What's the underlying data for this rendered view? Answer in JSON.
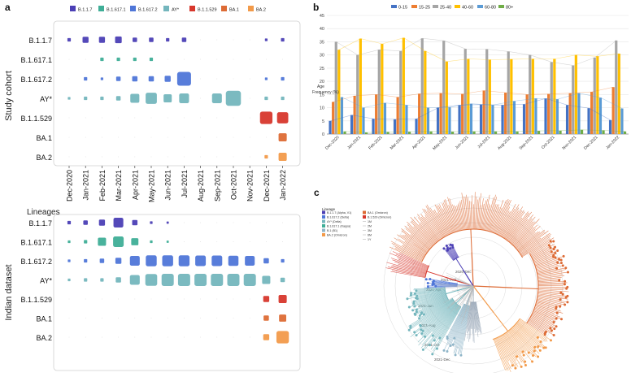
{
  "colors": {
    "B.1.1.7": "#4b3fb5",
    "B.1.617.1": "#3fae97",
    "B.1.617.2": "#4f76d8",
    "AY*": "#74b6bd",
    "B.1.1.529": "#d7372c",
    "BA.1": "#dd6b35",
    "BA.2": "#f29a4a"
  },
  "chart_data": [
    {
      "id": "a",
      "panel_label": "a",
      "type": "bubble-grid",
      "legend": [
        "B.1.1.7",
        "B.1.617.1",
        "B.1.617.2",
        "AY*",
        "B.1.1.529",
        "BA.1",
        "BA.2"
      ],
      "lineages": [
        "B.1.1.7",
        "B.1.617.1",
        "B.1.617.2",
        "AY*",
        "B.1.1.529",
        "BA.1",
        "BA.2"
      ],
      "months": [
        "Dec-2020",
        "Jan-2021",
        "Feb-2021",
        "Mar-2021",
        "Apr-2021",
        "May-2021",
        "Jun-2021",
        "Jul-2021",
        "Aug-2021",
        "Sep-2021",
        "Oct-2021",
        "Nov-2021",
        "Dec-2021",
        "Jan-2022"
      ],
      "xlabel": "Lineages",
      "study_cohort": {
        "ylabel": "Study cohort",
        "values": [
          [
            1,
            4,
            4,
            5,
            2,
            2,
            1,
            2,
            0,
            0,
            0,
            0,
            0.5,
            1
          ],
          [
            0,
            0,
            1,
            1,
            1,
            1,
            0,
            0,
            0,
            0,
            0,
            0,
            0,
            0
          ],
          [
            0,
            1,
            0.5,
            2,
            3,
            3,
            4,
            25,
            0,
            0,
            0,
            0,
            0.5,
            1
          ],
          [
            0.5,
            1,
            1,
            2,
            10,
            16,
            8,
            12,
            0,
            12,
            30,
            0,
            1,
            1
          ],
          [
            0,
            0,
            0,
            0,
            0,
            0,
            0,
            0,
            0,
            0,
            0,
            0,
            20,
            16
          ],
          [
            0,
            0,
            0,
            0,
            0,
            0,
            0,
            0,
            0,
            0,
            0,
            0,
            0,
            8
          ],
          [
            0,
            0,
            0,
            0,
            0,
            0,
            0,
            0,
            0,
            0,
            0,
            0,
            1,
            8
          ]
        ]
      },
      "indian_dataset": {
        "ylabel": "Indian dataset",
        "values": [
          [
            1,
            2,
            4,
            12,
            3,
            0.5,
            0.3,
            0,
            0,
            0,
            0,
            0,
            0,
            0
          ],
          [
            0.5,
            1,
            8,
            14,
            6,
            0.5,
            0.3,
            0,
            0,
            0,
            0,
            0,
            0,
            0
          ],
          [
            0.5,
            1,
            2,
            4,
            12,
            15,
            15,
            15,
            14,
            14,
            13,
            12,
            3,
            1
          ],
          [
            0.5,
            1,
            1,
            3,
            12,
            18,
            19,
            19,
            19,
            19,
            19,
            19,
            8,
            2
          ],
          [
            0,
            0,
            0,
            0,
            0,
            0,
            0,
            0,
            0,
            0,
            0,
            0,
            4,
            8
          ],
          [
            0,
            0,
            0,
            0,
            0,
            0,
            0,
            0,
            0,
            0,
            0,
            0,
            3,
            6
          ],
          [
            0,
            0,
            0,
            0,
            0,
            0,
            0,
            0,
            0,
            0,
            0,
            0,
            4,
            20
          ]
        ]
      }
    },
    {
      "id": "b",
      "panel_label": "b",
      "type": "bar",
      "title": "",
      "ylabel": "Age\nFrequency (%)",
      "ylim": [
        0,
        45
      ],
      "yticks": [
        0,
        5,
        10,
        15,
        20,
        25,
        30,
        35,
        40,
        45
      ],
      "categories": [
        "Dec-2020",
        "Jan-2021",
        "Feb-2021",
        "Mar-2021",
        "Apr-2021",
        "May-2021",
        "Jun-2021",
        "Jul-2021",
        "Aug-2021",
        "Sep-2021",
        "Oct-2021",
        "Nov-2021",
        "Dec-2021",
        "Jan-2022"
      ],
      "series": [
        {
          "name": "0-15",
          "color": "#4472c4",
          "values": [
            5,
            7.2,
            5.8,
            5.6,
            5.8,
            10,
            11,
            11.2,
            11,
            11.3,
            13.5,
            11,
            9.8,
            5.3
          ]
        },
        {
          "name": "15-25",
          "color": "#ed7d31",
          "values": [
            12.2,
            14.5,
            15,
            14,
            15.3,
            15.5,
            15.2,
            16.5,
            15.7,
            15,
            15.2,
            15.5,
            16,
            17.8
          ]
        },
        {
          "name": "25-40",
          "color": "#a5a5a5",
          "values": [
            35,
            30,
            32,
            31.5,
            36.3,
            35.4,
            32.3,
            32.2,
            31.3,
            30,
            27.3,
            26,
            29,
            35.5
          ]
        },
        {
          "name": "40-60",
          "color": "#ffc000",
          "values": [
            32,
            36.2,
            34.2,
            36.5,
            31.5,
            27.5,
            28.5,
            28.2,
            28.4,
            28.5,
            28.5,
            30,
            29.5,
            30.5
          ]
        },
        {
          "name": "60-80",
          "color": "#5b9bd5",
          "values": [
            14,
            10,
            11.8,
            11,
            10,
            10.2,
            11.5,
            11,
            12.5,
            13.5,
            13.2,
            15.5,
            13.8,
            9.7
          ]
        },
        {
          "name": "80+",
          "color": "#70ad47",
          "values": [
            1,
            0.6,
            0.8,
            0.9,
            1,
            0.9,
            1,
            1,
            1,
            1.2,
            1.3,
            1.6,
            1.4,
            1
          ]
        }
      ]
    },
    {
      "id": "c",
      "panel_label": "c",
      "type": "radial-phylogeny",
      "legend_title": "Lineage",
      "legend_items": [
        {
          "label": "B.1.1.7 (Alpha, V1)",
          "color": "#4b3fb5"
        },
        {
          "label": "B.1.617.2 (Delta)",
          "color": "#4f76d8"
        },
        {
          "label": "AY* (Delta)",
          "color": "#74b6bd"
        },
        {
          "label": "B.1.617.1 (Kappa)",
          "color": "#3fae97"
        },
        {
          "label": "B.1 (B1)",
          "color": "#8fb5c8"
        },
        {
          "label": "BA.2 (Omicron)",
          "color": "#f29a4a"
        },
        {
          "label": "BA.1 (Omicron)",
          "color": "#dd6b35"
        },
        {
          "label": "B.1.529 (Omicron)",
          "color": "#d7372c"
        }
      ],
      "ring_legend": [
        "1M",
        "2M",
        "3M",
        "6M",
        "1Y"
      ],
      "time_rings": [
        "2020-Dec",
        "2021-Feb",
        "2021-Apr",
        "2021-Jun",
        "2021-Aug",
        "2021-Oct",
        "2021-Dec"
      ]
    }
  ]
}
